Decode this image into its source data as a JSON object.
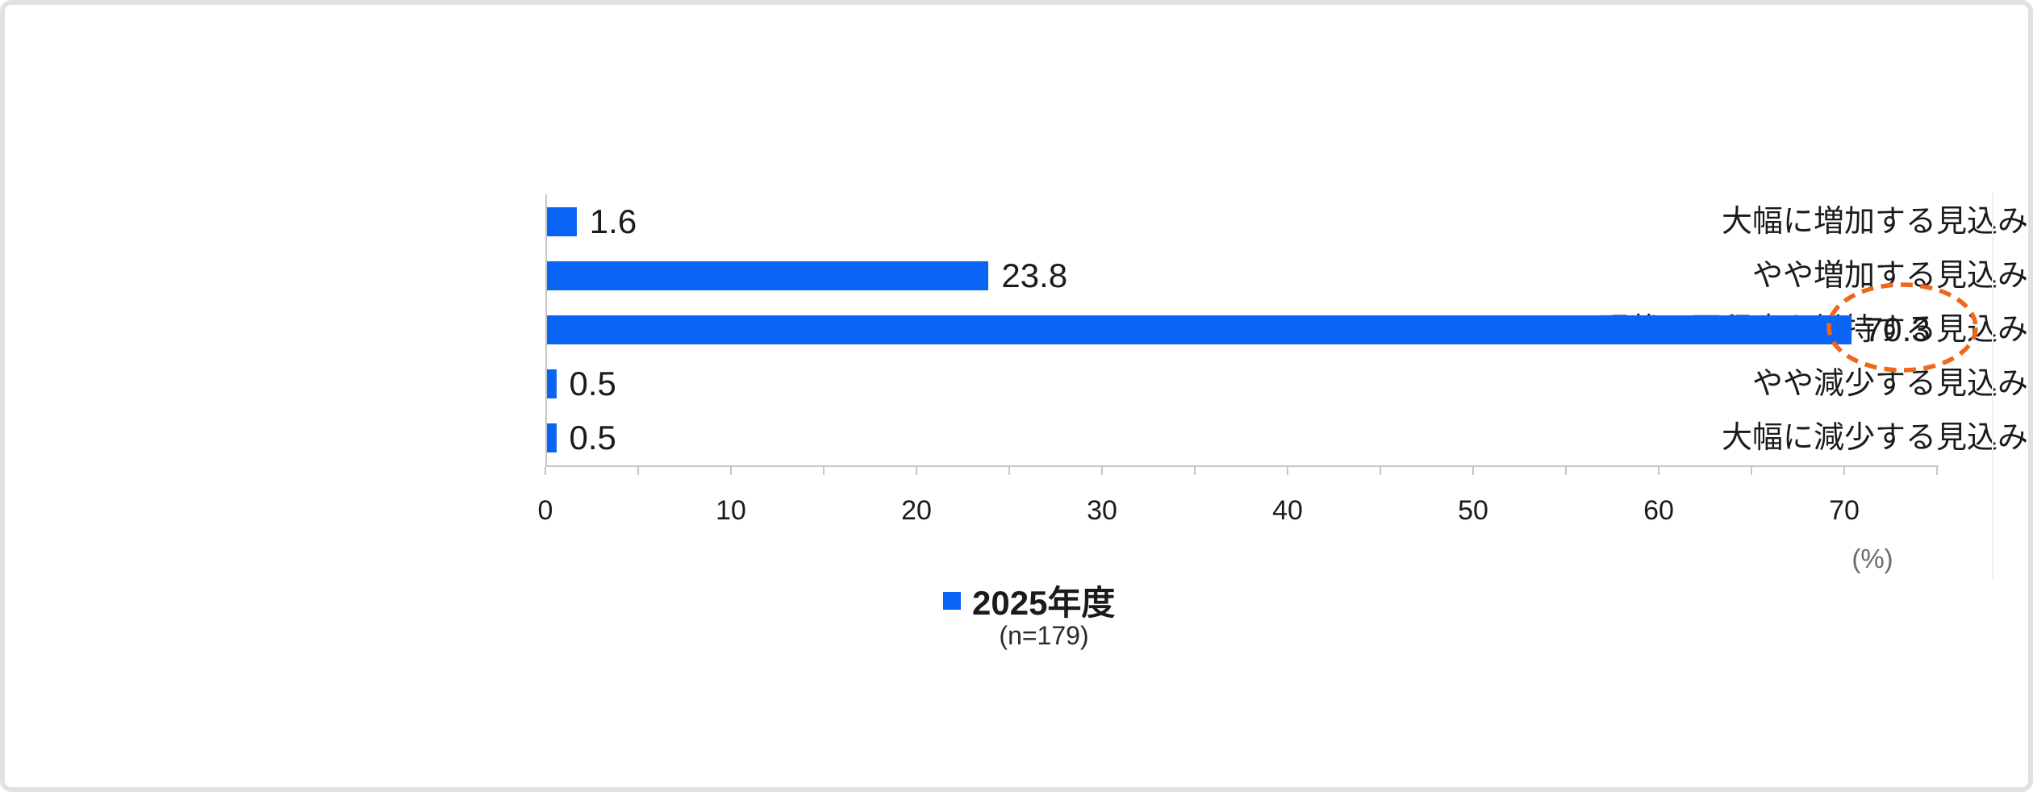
{
  "chart_data": {
    "type": "bar",
    "orientation": "horizontal",
    "title": "",
    "categories": [
      "大幅に増加する見込み",
      "やや増加する見込み",
      "現状と同程度を維持する見込み",
      "やや減少する見込み",
      "大幅に減少する見込み"
    ],
    "values": [
      1.6,
      23.8,
      70.3,
      0.5,
      0.5
    ],
    "value_labels": [
      "1.6",
      "23.8",
      "70.3",
      "0.5",
      "0.5"
    ],
    "series_label": "2025年度",
    "sample_size_label": "(n=179)",
    "xlim": [
      0,
      75
    ],
    "x_tick_labels": [
      "0",
      "10",
      "20",
      "30",
      "40",
      "50",
      "60",
      "70"
    ],
    "x_major_tick_step": 10,
    "x_minor_tick_step": 5,
    "x_unit_label": "(%)",
    "grid": false,
    "legend_position": "bottom",
    "bar_color": "#0a64f5",
    "annotation": {
      "type": "dashed-ellipse",
      "target_category": "現状と同程度を維持する見込み",
      "target_value": 70.3,
      "color": "#ee671a"
    }
  },
  "colors": {
    "axis": "#c6c6c6",
    "text": "#1b1b1b",
    "unit_text": "#6b6b6b",
    "card_border": "#e1e1e1",
    "background": "#ffffff"
  }
}
